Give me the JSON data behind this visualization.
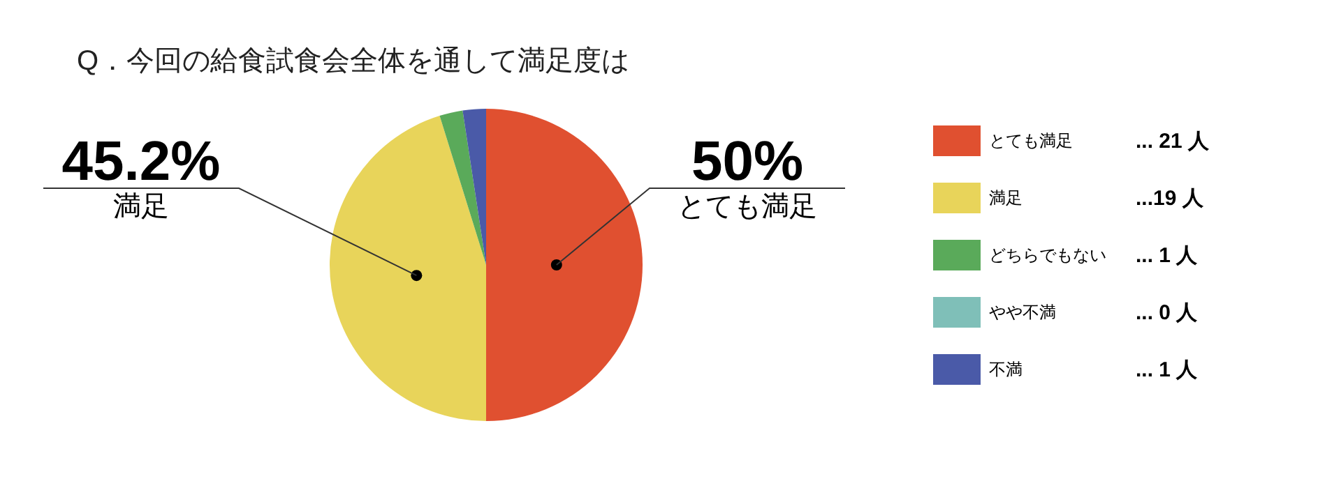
{
  "chart_data": {
    "type": "pie",
    "title": "Q．今回の給食試食会全体を通して満足度は",
    "categories": [
      "とても満足",
      "満足",
      "どちらでもない",
      "やや不満",
      "不満"
    ],
    "values": [
      50,
      45.2,
      2.4,
      0,
      2.4
    ],
    "colors": [
      "#e05030",
      "#e8d45a",
      "#5aaa5a",
      "#7fbfb8",
      "#4a5aa8"
    ],
    "value_labels": [
      "50%",
      "45.2%",
      null,
      null,
      null
    ],
    "annotations": [
      "... 21 人",
      "...19 人",
      "... 1 人",
      "... 0 人",
      "... 1 人"
    ],
    "legend": "right"
  }
}
